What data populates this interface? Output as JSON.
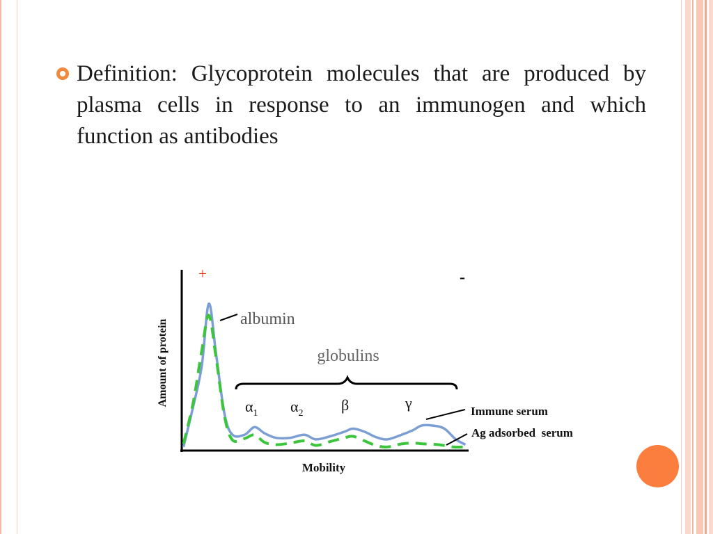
{
  "slide": {
    "definition": "Definition:   Glycoprotein molecules that are produced by plasma cells in response to an immunogen and which function as antibodies"
  },
  "theme": {
    "accent": "#fb7e3e",
    "bullet": "#f28a3e",
    "border_stripes": [
      "#f6b49b",
      "#f9c8b5",
      "#f4a889"
    ]
  },
  "chart_data": {
    "type": "line",
    "title": "",
    "xlabel": "Mobility",
    "ylabel": "Amount of protein",
    "plus_label": "+",
    "minus_label": "-",
    "peak_label": "albumin",
    "group_label": "globulins",
    "fraction_labels": [
      {
        "greek": "α",
        "sub": "1"
      },
      {
        "greek": "α",
        "sub": "2"
      },
      {
        "greek": "β",
        "sub": ""
      },
      {
        "greek": "γ",
        "sub": ""
      }
    ],
    "series": [
      {
        "name": "Immune serum",
        "style": "solid",
        "color": "#7b9fd4",
        "points": [
          [
            0.6,
            2
          ],
          [
            4,
            55
          ],
          [
            7,
            108
          ],
          [
            9.5,
            190
          ],
          [
            12,
            125
          ],
          [
            15,
            45
          ],
          [
            17.8,
            18
          ],
          [
            22,
            18
          ],
          [
            25.5,
            28
          ],
          [
            29,
            20
          ],
          [
            33,
            14
          ],
          [
            38,
            14
          ],
          [
            43,
            18
          ],
          [
            47,
            12
          ],
          [
            52,
            16
          ],
          [
            57,
            22
          ],
          [
            60,
            26
          ],
          [
            64,
            22
          ],
          [
            68,
            15
          ],
          [
            72,
            12
          ],
          [
            77,
            18
          ],
          [
            81,
            24
          ],
          [
            84,
            30
          ],
          [
            88,
            30
          ],
          [
            92,
            26
          ],
          [
            96,
            12
          ],
          [
            99.4,
            5
          ]
        ]
      },
      {
        "name": "Ag adsorbed  serum",
        "style": "dashed",
        "color": "#3cc43c",
        "points": [
          [
            0.6,
            6
          ],
          [
            4,
            60
          ],
          [
            7,
            128
          ],
          [
            9.5,
            175
          ],
          [
            12,
            120
          ],
          [
            15,
            42
          ],
          [
            17.8,
            11
          ],
          [
            22,
            13
          ],
          [
            25.5,
            18
          ],
          [
            29,
            8
          ],
          [
            33,
            5
          ],
          [
            38,
            7
          ],
          [
            43,
            10
          ],
          [
            47,
            4
          ],
          [
            52,
            9
          ],
          [
            57,
            14
          ],
          [
            60,
            16
          ],
          [
            64,
            10
          ],
          [
            68,
            4
          ],
          [
            72,
            2
          ],
          [
            77,
            6
          ],
          [
            81,
            7
          ],
          [
            85,
            6
          ],
          [
            90,
            5
          ],
          [
            95,
            2
          ],
          [
            98.6,
            2
          ]
        ]
      }
    ],
    "xlim": [
      0,
      100
    ],
    "ylim": [
      0,
      210
    ],
    "axis_ticks": "none",
    "grid": false
  }
}
